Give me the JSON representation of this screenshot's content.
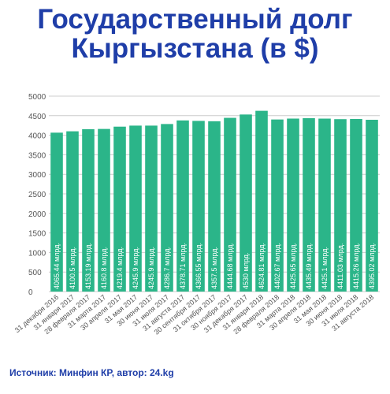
{
  "title_line1": "Государственный долг",
  "title_line2": "Кыргызстана (в $)",
  "source": "Источник: Минфин КР, автор: 24.kg",
  "colors": {
    "bar": "#2bb589",
    "title": "#1f3ea8",
    "grid": "#cccccc",
    "axis_text": "#555555"
  },
  "chart_data": {
    "type": "bar",
    "title": "Государственный долг Кыргызстана (в $)",
    "ylim": [
      0,
      5000
    ],
    "yticks": [
      0,
      500,
      1000,
      1500,
      2000,
      2500,
      3000,
      3500,
      4000,
      4500,
      5000
    ],
    "grid": true,
    "categories": [
      "31 декабря 2016",
      "31 января 2017",
      "28 февраля 2017",
      "31 марта 2017",
      "30 апреля 2017",
      "31 мая 2017",
      "30 июня 2017",
      "31 июля 2017",
      "31 августа 2017",
      "30 сентября 2017",
      "31 октября 2017",
      "30 ноября 2017",
      "31 декабря 2017",
      "31 января 2018",
      "28 февраля 2018",
      "31 марта 2018",
      "30 апреля 2018",
      "31 мая 2018",
      "30 июня 2018",
      "31 июля 2018",
      "31 августа 2018"
    ],
    "values": [
      4065.44,
      4100.5,
      4153.19,
      4160.8,
      4219.4,
      4245.9,
      4245.9,
      4286.7,
      4378.71,
      4366.55,
      4357.5,
      4444.68,
      4530,
      4624.81,
      4402.67,
      4425.65,
      4435.49,
      4425.1,
      4411.03,
      4415.26,
      4395.02
    ],
    "data_labels": [
      "4065.44 млрд.",
      "4100.5 млрд.",
      "4153.19 млрд.",
      "4160.8 млрд.",
      "4219.4 млрд.",
      "4245.9 млрд.",
      "4245.9 млрд.",
      "4286.7 млрд.",
      "4378.71 млрд.",
      "4366.55 млрд.",
      "4357.5 млрд.",
      "4444.68 млрд.",
      "4530 млрд.",
      "4624.81 млрд.",
      "4402.67 млрд.",
      "4425.65 млрд.",
      "4435.49 млрд.",
      "4425.1 млрд.",
      "4411.03 млрд.",
      "4415.26 млрд.",
      "4395.02 млрд."
    ]
  }
}
